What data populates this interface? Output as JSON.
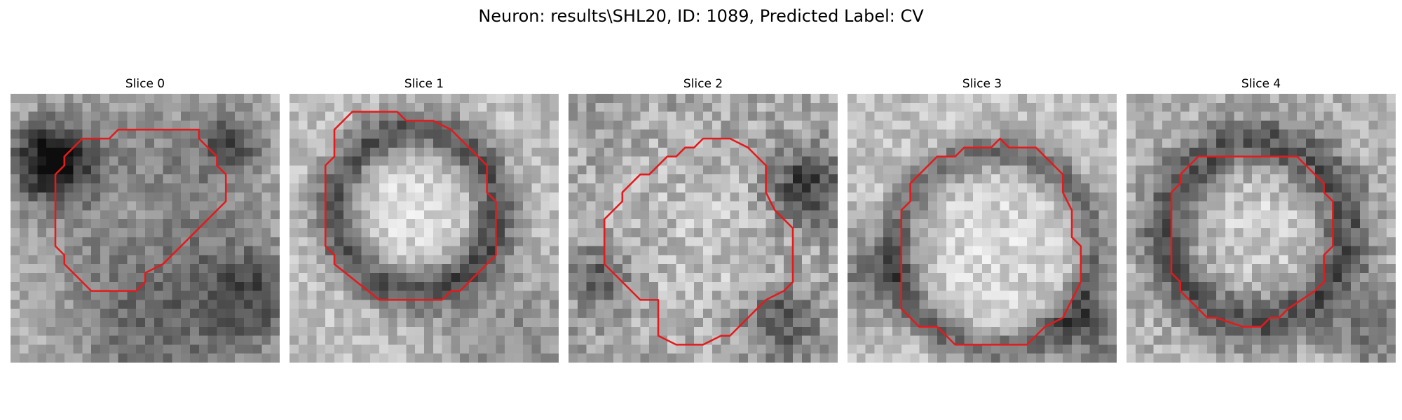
{
  "figure": {
    "title": "Neuron: results\\SHL20, ID: 1089, Predicted Label: CV",
    "contour_color": "#e41a1c",
    "panels": [
      {
        "label": "Slice 0",
        "grid": 30,
        "contour": [
          [
            12,
            4
          ],
          [
            11,
            5
          ],
          [
            8,
            5
          ],
          [
            6,
            7
          ],
          [
            6,
            8
          ],
          [
            5,
            9
          ],
          [
            5,
            17
          ],
          [
            6,
            18
          ],
          [
            6,
            19
          ],
          [
            9,
            22
          ],
          [
            14,
            22
          ],
          [
            15,
            21
          ],
          [
            15,
            20
          ],
          [
            17,
            19
          ],
          [
            24,
            12
          ],
          [
            24,
            9
          ],
          [
            23,
            8
          ],
          [
            23,
            7
          ],
          [
            21,
            5
          ],
          [
            21,
            4
          ]
        ],
        "base_brightness": 0.72,
        "blobs": [
          {
            "cx": 4.0,
            "cy": 7.0,
            "r": 3.0,
            "v": -0.65
          },
          {
            "cx": 14.0,
            "cy": 12.0,
            "r": 8.0,
            "v": -0.3
          },
          {
            "cx": 13.0,
            "cy": 13.0,
            "r": 4.0,
            "v": 0.18
          },
          {
            "cx": 16.0,
            "cy": 27.0,
            "r": 7.0,
            "v": -0.25
          },
          {
            "cx": 24.0,
            "cy": 5.0,
            "r": 2.5,
            "v": -0.35
          },
          {
            "cx": 27.0,
            "cy": 22.0,
            "r": 4.0,
            "v": -0.35
          }
        ],
        "noise": 0.12,
        "seed": 11
      },
      {
        "label": "Slice 1",
        "grid": 30,
        "contour": [
          [
            7,
            2
          ],
          [
            5,
            4
          ],
          [
            5,
            7
          ],
          [
            4,
            8
          ],
          [
            4,
            17
          ],
          [
            5,
            18
          ],
          [
            5,
            19
          ],
          [
            10,
            23
          ],
          [
            17,
            23
          ],
          [
            18,
            22
          ],
          [
            19,
            22
          ],
          [
            23,
            18
          ],
          [
            23,
            12
          ],
          [
            22,
            11
          ],
          [
            22,
            8
          ],
          [
            18,
            4
          ],
          [
            16,
            3
          ],
          [
            13,
            3
          ],
          [
            12,
            2
          ]
        ],
        "base_brightness": 0.74,
        "ring": {
          "cx": 13.5,
          "cy": 12.5,
          "r": 9.0,
          "w": 1.8,
          "v": -0.45
        },
        "blobs": [
          {
            "cx": 13.5,
            "cy": 12.5,
            "r": 7.0,
            "v": 0.12
          },
          {
            "cx": 24.0,
            "cy": 27.0,
            "r": 6.0,
            "v": -0.2
          }
        ],
        "noise": 0.12,
        "seed": 23
      },
      {
        "label": "Slice 2",
        "grid": 30,
        "contour": [
          [
            16,
            5
          ],
          [
            15,
            5
          ],
          [
            14,
            6
          ],
          [
            13,
            6
          ],
          [
            12,
            7
          ],
          [
            11,
            7
          ],
          [
            9,
            9
          ],
          [
            8,
            9
          ],
          [
            7,
            10
          ],
          [
            6,
            11
          ],
          [
            6,
            12
          ],
          [
            5,
            13
          ],
          [
            4,
            14
          ],
          [
            4,
            19
          ],
          [
            5,
            20
          ],
          [
            6,
            21
          ],
          [
            7,
            22
          ],
          [
            8,
            23
          ],
          [
            10,
            23
          ],
          [
            10,
            27
          ],
          [
            12,
            28
          ],
          [
            15,
            28
          ],
          [
            17,
            27
          ],
          [
            18,
            27
          ],
          [
            21,
            24
          ],
          [
            22,
            23
          ],
          [
            24,
            22
          ],
          [
            25,
            21
          ],
          [
            25,
            15
          ],
          [
            24,
            14
          ],
          [
            23,
            13
          ],
          [
            22,
            11
          ],
          [
            22,
            8
          ],
          [
            21,
            7
          ],
          [
            20,
            6
          ],
          [
            18,
            5
          ],
          [
            17,
            5
          ]
        ],
        "base_brightness": 0.64,
        "blobs": [
          {
            "cx": 15.0,
            "cy": 16.0,
            "r": 8.5,
            "v": 0.12
          },
          {
            "cx": 26.0,
            "cy": 10.0,
            "r": 3.0,
            "v": -0.45
          },
          {
            "cx": 23.0,
            "cy": 25.0,
            "r": 3.0,
            "v": -0.35
          },
          {
            "cx": 3.0,
            "cy": 20.0,
            "r": 2.5,
            "v": -0.3
          }
        ],
        "noise": 0.16,
        "seed": 37
      },
      {
        "label": "Slice 3",
        "grid": 30,
        "contour": [
          [
            17,
            5
          ],
          [
            16,
            6
          ],
          [
            13,
            6
          ],
          [
            12,
            7
          ],
          [
            10,
            7
          ],
          [
            9,
            8
          ],
          [
            8,
            9
          ],
          [
            7,
            10
          ],
          [
            7,
            12
          ],
          [
            6,
            13
          ],
          [
            6,
            24
          ],
          [
            7,
            25
          ],
          [
            8,
            26
          ],
          [
            10,
            26
          ],
          [
            11,
            27
          ],
          [
            12,
            28
          ],
          [
            20,
            28
          ],
          [
            22,
            26
          ],
          [
            24,
            25
          ],
          [
            25,
            23
          ],
          [
            26,
            21
          ],
          [
            26,
            17
          ],
          [
            25,
            16
          ],
          [
            25,
            13
          ],
          [
            24,
            11
          ],
          [
            24,
            9
          ],
          [
            23,
            8
          ],
          [
            22,
            7
          ],
          [
            21,
            6
          ],
          [
            18,
            6
          ]
        ],
        "base_brightness": 0.74,
        "ring": {
          "cx": 16.0,
          "cy": 17.0,
          "r": 11.0,
          "w": 1.5,
          "v": -0.35
        },
        "blobs": [
          {
            "cx": 16.0,
            "cy": 17.0,
            "r": 9.0,
            "v": 0.1
          },
          {
            "cx": 2.0,
            "cy": 20.0,
            "r": 3.5,
            "v": -0.3
          },
          {
            "cx": 27.0,
            "cy": 26.0,
            "r": 3.0,
            "v": -0.35
          }
        ],
        "noise": 0.12,
        "seed": 41
      },
      {
        "label": "Slice 4",
        "grid": 30,
        "contour": [
          [
            9,
            7
          ],
          [
            8,
            7
          ],
          [
            7,
            8
          ],
          [
            6,
            9
          ],
          [
            6,
            10
          ],
          [
            5,
            11
          ],
          [
            5,
            20
          ],
          [
            6,
            21
          ],
          [
            6,
            22
          ],
          [
            8,
            24
          ],
          [
            9,
            25
          ],
          [
            10,
            25
          ],
          [
            13,
            26
          ],
          [
            15,
            26
          ],
          [
            16,
            25
          ],
          [
            17,
            25
          ],
          [
            18,
            24
          ],
          [
            21,
            22
          ],
          [
            22,
            21
          ],
          [
            22,
            18
          ],
          [
            23,
            17
          ],
          [
            23,
            12
          ],
          [
            22,
            11
          ],
          [
            22,
            10
          ],
          [
            21,
            9
          ],
          [
            20,
            8
          ],
          [
            19,
            7
          ]
        ],
        "base_brightness": 0.7,
        "ring": {
          "cx": 14.0,
          "cy": 15.0,
          "r": 10.0,
          "w": 2.2,
          "v": -0.4
        },
        "blobs": [
          {
            "cx": 14.0,
            "cy": 14.0,
            "r": 6.5,
            "v": 0.1
          },
          {
            "cx": 27.0,
            "cy": 26.0,
            "r": 3.0,
            "v": -0.25
          }
        ],
        "noise": 0.14,
        "seed": 53
      }
    ]
  }
}
